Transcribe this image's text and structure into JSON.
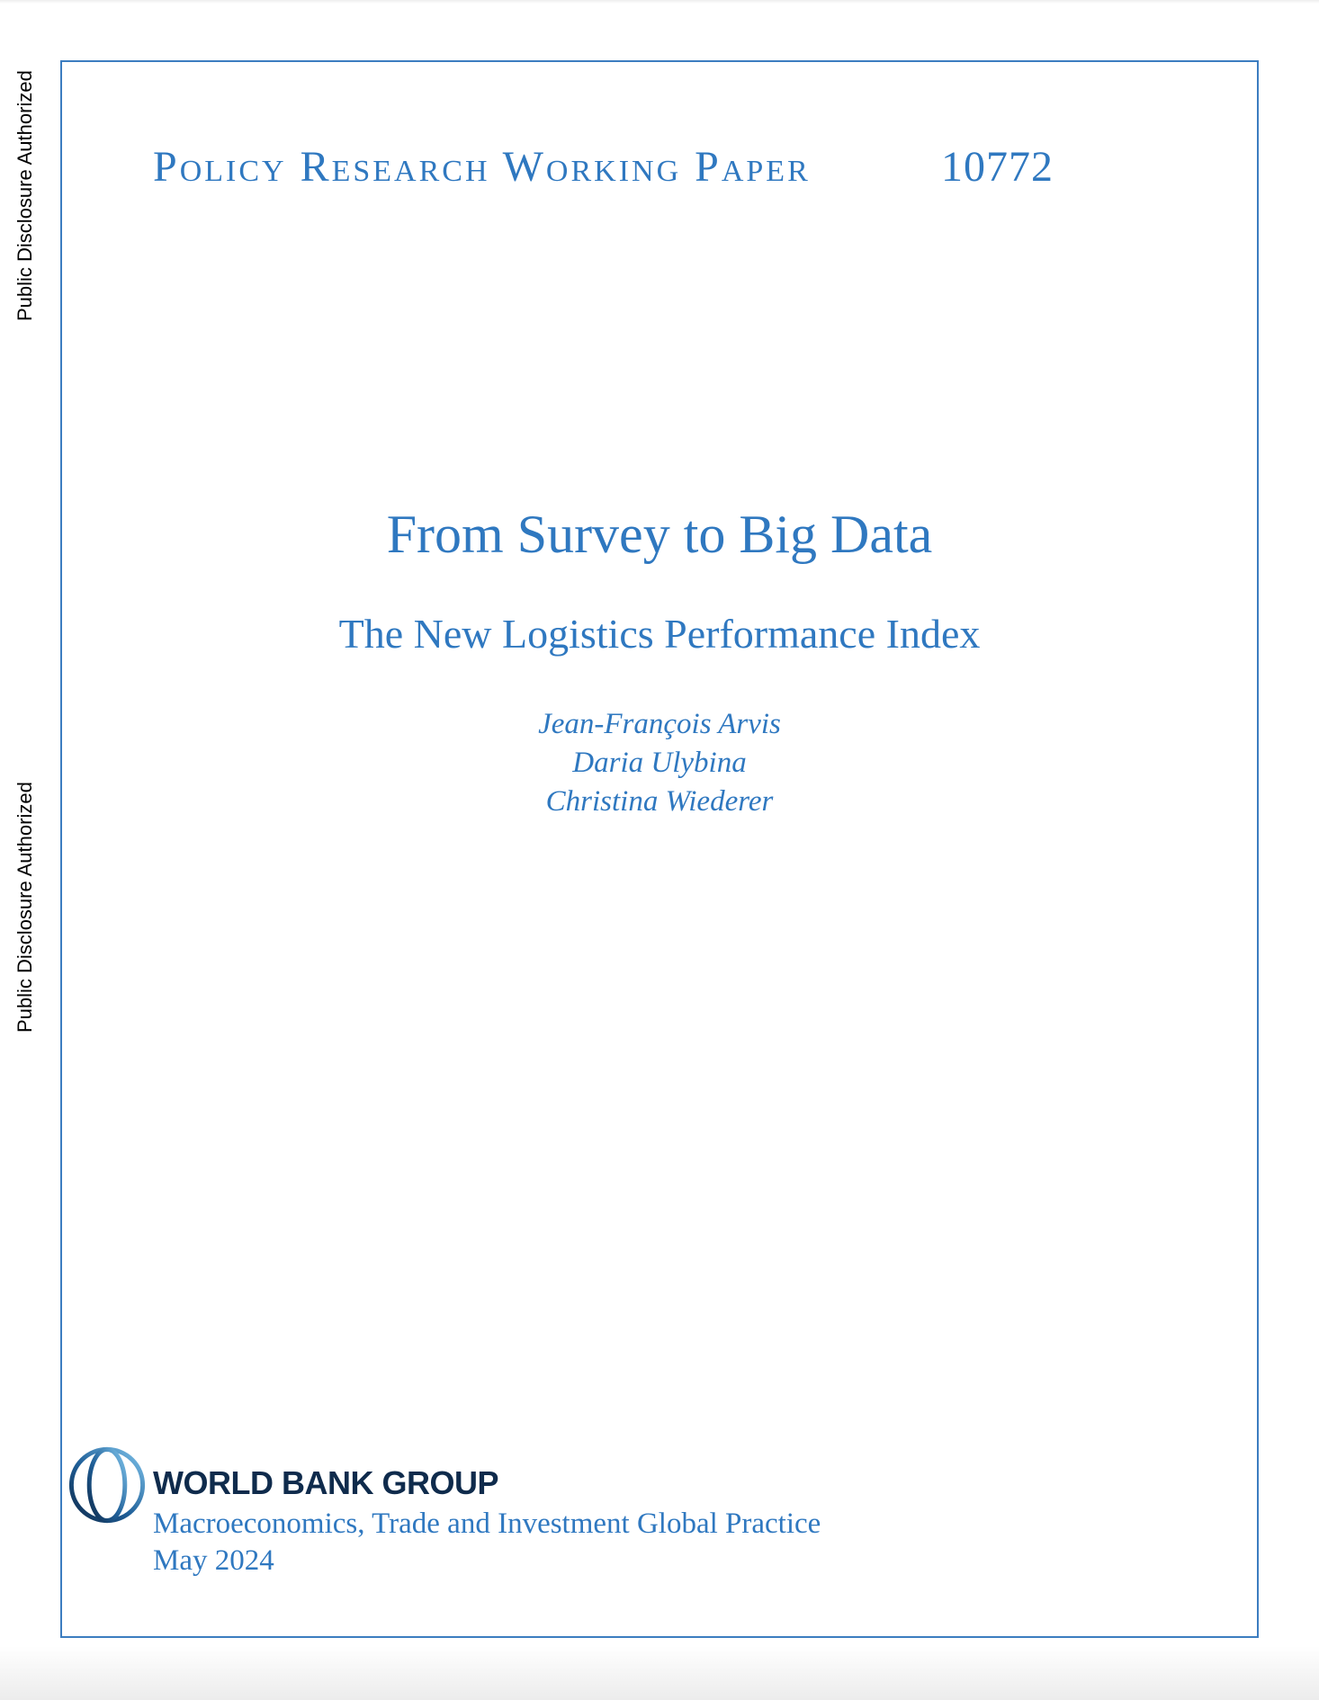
{
  "side_labels": [
    "Public Disclosure Authorized",
    "Public Disclosure Authorized"
  ],
  "header": {
    "series": "Policy Research Working Paper",
    "number": "10772"
  },
  "title": "From Survey to Big Data",
  "subtitle": "The New Logistics Performance Index",
  "authors": [
    "Jean-François Arvis",
    "Daria Ulybina",
    "Christina Wiederer"
  ],
  "footer": {
    "logo_icon": "world-bank-globe-icon",
    "organization": "WORLD BANK GROUP",
    "practice": "Macroeconomics, Trade and Investment Global Practice",
    "date": "May 2024"
  },
  "colors": {
    "accent": "#2f78c0",
    "frame": "#3c7dc0",
    "logo_text": "#0f2b4c"
  }
}
